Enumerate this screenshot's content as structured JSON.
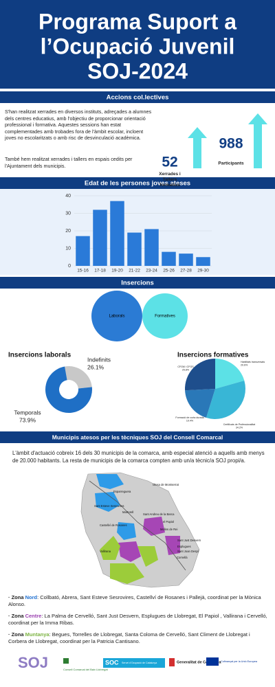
{
  "header": {
    "title_lines": [
      "Programa Suport a",
      "l’Ocupació Juvenil",
      "SOJ-2024"
    ]
  },
  "accions": {
    "heading": "Accions col.lectives",
    "paragraphs": [
      "S'han realitzat xerrades en diversos instituts, adreçades a alumnes dels centres educatius, amb l'objectiu de proporcionar orientació professional i formativa. Aquestes sessions han estat complementades amb trobades fora de l'àmbit escolar, incloent joves no escolaritzats o amb risc de desvinculació acadèmica.",
      "També hem realitzat xerrades i tallers en espais cedits per l'Ajuntament dels municipis."
    ],
    "stats": [
      {
        "value": 52,
        "label": "Xerrades i Tallers formatius"
      },
      {
        "value": 988,
        "label": "Participants"
      }
    ]
  },
  "insercions": {
    "heading": "Insercions",
    "venn": [
      "Laborals",
      "Formatives"
    ]
  },
  "chart_data": [
    {
      "type": "bar",
      "title": "Edat de les persones joves ateses",
      "categories": [
        "15-16",
        "17-18",
        "19-20",
        "21-22",
        "23-24",
        "25-26",
        "27-28",
        "29-30"
      ],
      "values": [
        17,
        32,
        37,
        19,
        21,
        8,
        7,
        5
      ],
      "color": "#2a7ad8",
      "ylim": [
        0,
        40
      ],
      "yticks": [
        0,
        10,
        20,
        30,
        40
      ],
      "grid": true
    },
    {
      "type": "donut",
      "title": "Insercions laborals",
      "categories": [
        "Indefinits",
        "Temporals"
      ],
      "values": [
        26.1,
        73.9
      ],
      "value_labels": [
        "26.1%",
        "73.9%"
      ],
      "colors": [
        "#c8c8c8",
        "#1f6fc5"
      ]
    },
    {
      "type": "pie",
      "title": "Insercions formatives",
      "categories": [
        "Habilitats transversals",
        "Certificats de Professionalitat",
        "Formació de curta durada",
        "CFGM i CFGS"
      ],
      "values": [
        20.6,
        34.2,
        19.4,
        25.8
      ],
      "value_labels": [
        "20.6%",
        "34.2%",
        "19.4%",
        "25.8%"
      ],
      "colors": [
        "#5ce1e6",
        "#38b6d6",
        "#2a78b8",
        "#1e4e8c"
      ]
    }
  ],
  "municipis": {
    "heading": "Municipis atesos per les tècniques SOJ del Consell Comarcal",
    "paragraph": "L'àmbit d'actuació cobreix 16 dels 30 municipis de la comarca, amb especial atenció a aquells amb menys de 20.000 habitants. La resta de municipis de la comarca compten amb un/a tècnic/a SOJ propi/a.",
    "map_labels": [
      "Olesa de Montserrat",
      "Esparreguera",
      "Sant Esteve Sesrovires",
      "Martorell",
      "Sant Andreu de la Barca",
      "Castellví de Rosanes",
      "el Papiol",
      "Molins de Rei",
      "Sant Just Desvern",
      "Esplugues",
      "Sant Joan Despí",
      "Cornellà",
      "Vallirana"
    ],
    "zones": [
      {
        "prefix": "· Zona",
        "name": "Nord",
        "color": "#1e6fd0",
        "text": ": Collbató, Abrera, Sant Esteve Sesrovires, Castellví de Rosanes i Pallejà, coordinat per la Mònica Alonso."
      },
      {
        "prefix": "· Zona",
        "name": "Centre",
        "color": "#9a3fb0",
        "text": ": La Palma de Cervelló, Sant Just Desvern, Esplugues de Llobregat, El Papiol , Vallirana i Cervelló, coordinat per la Imma Ribas."
      },
      {
        "prefix": "· Zona",
        "name": "Muntanya",
        "color": "#7cb342",
        "text": ": Begues, Torrelles de Llobregat, Santa Coloma de Cervelló, Sant Climent de Llobregat i Corbera de Llobregat, coordinat per la Patricia Cantisano."
      }
    ]
  },
  "footer": {
    "soj": "SOJ",
    "consell": "Consell Comarcal del Baix Llobregat",
    "soc": "SOC",
    "soc_name": "Servei d'Ocupació de Catalunya",
    "generalitat": "Generalitat de Catalunya",
    "ue": "Cofinançat per la Unió Europea"
  }
}
